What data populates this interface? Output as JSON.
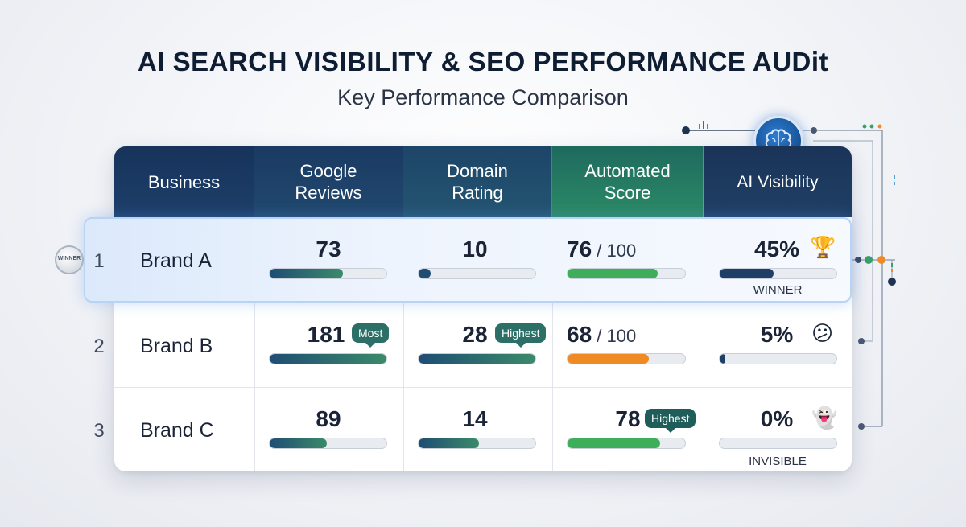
{
  "title": "AI SEARCH VISIBILITY & SEO PERFORMANCE AUDit",
  "subtitle": "Key Performance Comparison",
  "colors": {
    "header_dark": "#17335a",
    "header_green": "#2c8a66",
    "bar_dark": "#1f4d74",
    "bar_green": "#3fae5a",
    "bar_orange": "#f08a24"
  },
  "icons": {
    "seal": "winner-seal-icon",
    "brain": "brain-icon"
  },
  "seal_label": "WINNER",
  "columns": [
    "Business",
    "Google\nReviews",
    "Domain\nRating",
    "Automated\nScore",
    "AI Visibility"
  ],
  "rows": [
    {
      "rank": "1",
      "business": "Brand A",
      "reviews": "73",
      "domain": "10",
      "score": "76",
      "score_suffix": " / 100",
      "ai": "45%",
      "ai_icon": "trophy-icon",
      "ai_emoji": "🏆",
      "ai_caption": "WINNER"
    },
    {
      "rank": "2",
      "business": "Brand B",
      "reviews": "181",
      "reviews_badge": "Most",
      "domain": "28",
      "domain_badge": "Highest",
      "score": "68",
      "score_suffix": " / 100",
      "ai": "5%",
      "ai_icon": "confused-face-icon",
      "ai_emoji": "😕"
    },
    {
      "rank": "3",
      "business": "Brand C",
      "reviews": "89",
      "domain": "14",
      "score": "78",
      "score_badge": "Highest",
      "ai": "0%",
      "ai_icon": "ghost-icon",
      "ai_emoji": "👻",
      "ai_caption": "INVISIBLE"
    }
  ],
  "chart_data": {
    "type": "table",
    "categories": [
      "Brand A",
      "Brand B",
      "Brand C"
    ],
    "series": [
      {
        "name": "Google Reviews",
        "values": [
          73,
          181,
          89
        ],
        "bar_fill": [
          0.63,
          1.0,
          0.49
        ]
      },
      {
        "name": "Domain Rating",
        "values": [
          10,
          28,
          14
        ],
        "bar_fill": [
          0.1,
          1.0,
          0.52
        ]
      },
      {
        "name": "Automated Score",
        "values": [
          76,
          68,
          78
        ],
        "bar_fill": [
          0.77,
          0.69,
          0.79
        ]
      },
      {
        "name": "AI Visibility",
        "values": [
          45,
          5,
          0
        ],
        "bar_fill": [
          0.46,
          0.05,
          0.0
        ]
      }
    ]
  }
}
